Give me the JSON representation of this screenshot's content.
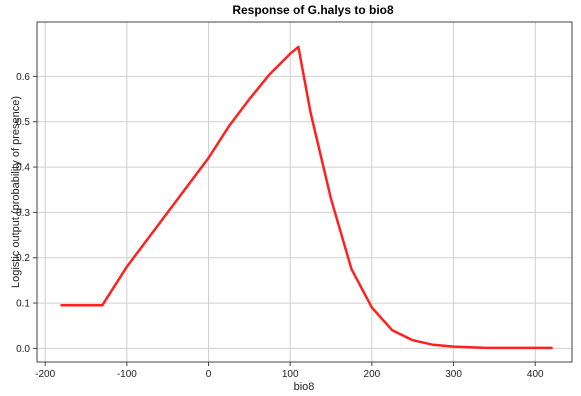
{
  "chart_data": {
    "type": "line",
    "title": "Response of G.halys to bio8",
    "xlabel": "bio8",
    "ylabel": "Logistic output (probability of presence)",
    "xlim": [
      -210,
      445
    ],
    "ylim": [
      -0.03,
      0.72
    ],
    "xticks": [
      -200,
      -100,
      0,
      100,
      200,
      300,
      400
    ],
    "yticks": [
      0.0,
      0.1,
      0.2,
      0.3,
      0.4,
      0.5,
      0.6
    ],
    "ytick_labels": [
      "0.0",
      "0.1",
      "0.2",
      "0.3",
      "0.4",
      "0.5",
      "0.6"
    ],
    "grid": true,
    "series": [
      {
        "color": "#ff2020",
        "x": [
          -180,
          -130,
          -100,
          -50,
          0,
          25,
          50,
          75,
          100,
          110,
          125,
          150,
          175,
          200,
          225,
          250,
          275,
          300,
          340,
          380,
          420
        ],
        "y": [
          0.095,
          0.095,
          0.18,
          0.3,
          0.42,
          0.49,
          0.55,
          0.605,
          0.65,
          0.665,
          0.52,
          0.33,
          0.175,
          0.09,
          0.04,
          0.018,
          0.008,
          0.004,
          0.001,
          0.001,
          0.001
        ]
      }
    ]
  }
}
